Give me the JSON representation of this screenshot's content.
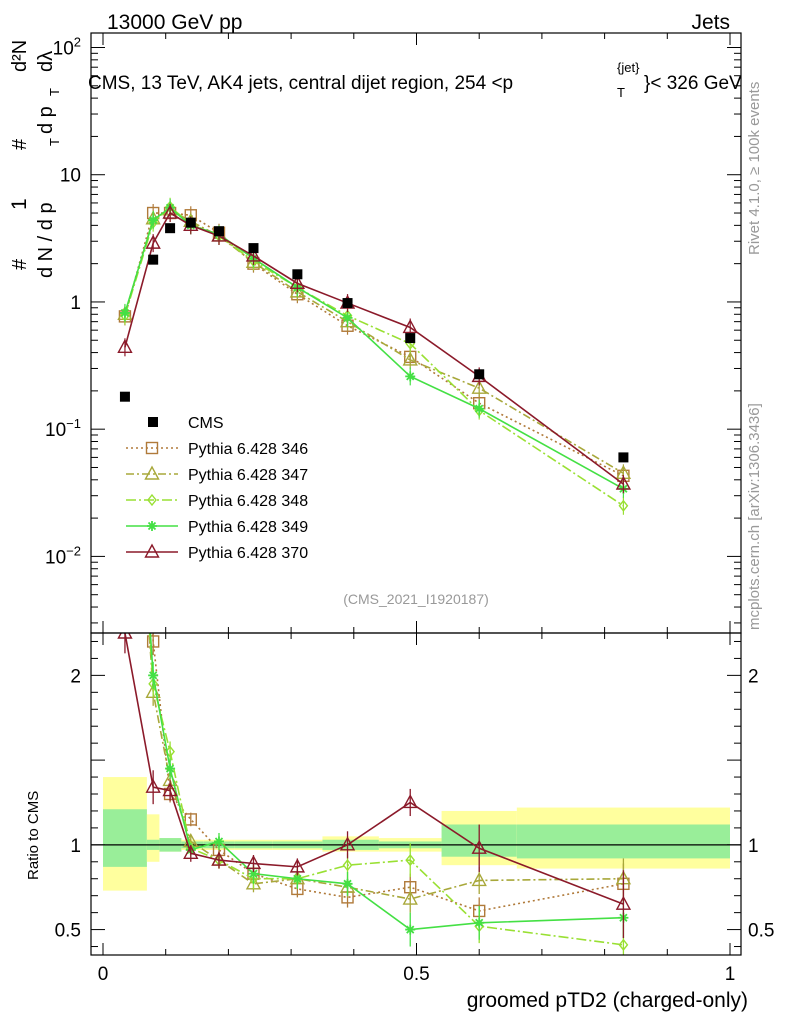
{
  "header": {
    "left_label": "13000 GeV pp",
    "right_label": "Jets",
    "title": "CMS, 13 TeV, AK4 jets, central dijet region, 254 <p",
    "title_sup": "{jet}",
    "title_sub": "T",
    "title_end": "}< 326 GeV",
    "analysis_id": "(CMS_2021_I1920187)"
  },
  "side_labels": {
    "rivet": "Rivet 4.1.0, ≥ 100k events",
    "mcplots": "mcplots.cern.ch [arXiv:1306.3436]"
  },
  "axes": {
    "xlabel": "groomed pTD2 (charged-only)",
    "ratio_ylabel": "Ratio to CMS",
    "ylabel_parts": [
      "#",
      "1",
      "d N / d p",
      "T",
      "#",
      "d p",
      "T",
      "d²N",
      "dλ"
    ],
    "xlim": [
      0,
      1
    ],
    "main_ylim_log": [
      0.0025,
      130
    ],
    "ratio_ylim": [
      0.35,
      2.25
    ],
    "x_ticks": [
      {
        "v": 0,
        "label": "0"
      },
      {
        "v": 0.5,
        "label": "0.5"
      },
      {
        "v": 1,
        "label": "1"
      }
    ],
    "main_y_ticks": [
      {
        "v": 0.01,
        "base": "10",
        "exp": "−2"
      },
      {
        "v": 0.1,
        "base": "10",
        "exp": "−1"
      },
      {
        "v": 1,
        "label": "1"
      },
      {
        "v": 10,
        "label": "10"
      },
      {
        "v": 100,
        "base": "10",
        "exp": "2"
      }
    ],
    "ratio_y_ticks": [
      {
        "v": 0.5,
        "label": "0.5"
      },
      {
        "v": 1,
        "label": "1"
      },
      {
        "v": 2,
        "label": "2"
      }
    ]
  },
  "chart_data": {
    "type": "line",
    "title": "CMS, 13 TeV, AK4 jets, central dijet region, 254 < pT{jet} < 326 GeV",
    "xlabel": "groomed pTD2 (charged-only)",
    "ylabel": "1/(dN/dpT) d²N/(dpT dλ)",
    "x": [
      0.035,
      0.08,
      0.107,
      0.14,
      0.185,
      0.24,
      0.31,
      0.39,
      0.49,
      0.6,
      0.83
    ],
    "bin_edges": [
      0.0,
      0.07,
      0.09,
      0.125,
      0.16,
      0.21,
      0.27,
      0.35,
      0.44,
      0.54,
      0.66,
      1.0
    ],
    "data": {
      "name": "CMS",
      "color": "#000000",
      "values": [
        0.18,
        2.15,
        3.8,
        4.2,
        3.6,
        2.65,
        1.65,
        0.98,
        0.52,
        0.27,
        0.06
      ]
    },
    "ratio_band_stat": [
      [
        0.87,
        1.21
      ],
      [
        0.97,
        1.03
      ],
      [
        0.96,
        1.04
      ],
      [
        0.98,
        1.02
      ],
      [
        0.98,
        1.02
      ],
      [
        0.98,
        1.02
      ],
      [
        0.98,
        1.02
      ],
      [
        0.97,
        1.03
      ],
      [
        0.98,
        1.02
      ],
      [
        0.93,
        1.12
      ],
      [
        0.92,
        1.12
      ]
    ],
    "ratio_band_total": [
      [
        0.73,
        1.4
      ],
      [
        0.9,
        1.18
      ],
      [
        0.96,
        1.04
      ],
      [
        0.97,
        1.03
      ],
      [
        0.97,
        1.03
      ],
      [
        0.97,
        1.03
      ],
      [
        0.97,
        1.03
      ],
      [
        0.96,
        1.05
      ],
      [
        0.96,
        1.04
      ],
      [
        0.88,
        1.2
      ],
      [
        0.86,
        1.22
      ]
    ],
    "series": [
      {
        "name": "Pythia 6.428 346",
        "color": "#b07a3a",
        "dash": "2,3",
        "marker": "square",
        "values": [
          0.77,
          5.0,
          5.0,
          4.8,
          3.5,
          2.0,
          1.15,
          0.65,
          0.37,
          0.16,
          0.043
        ],
        "ratio": [
          4.3,
          2.2,
          1.3,
          1.15,
          0.97,
          0.83,
          0.74,
          0.69,
          0.75,
          0.61,
          0.77
        ],
        "ratio_err": [
          0.3,
          0.08,
          0.05,
          0.04,
          0.05,
          0.05,
          0.05,
          0.06,
          0.08,
          0.08,
          0.12
        ]
      },
      {
        "name": "Pythia 6.428 347",
        "color": "#a8a83a",
        "dash": "8,3,2,3",
        "marker": "triangle",
        "values": [
          0.8,
          4.5,
          5.3,
          4.3,
          3.3,
          2.05,
          1.2,
          0.7,
          0.35,
          0.21,
          0.045
        ],
        "ratio": [
          4.4,
          1.9,
          1.38,
          1.02,
          0.91,
          0.77,
          0.8,
          0.75,
          0.68,
          0.79,
          0.8
        ],
        "ratio_err": [
          0.3,
          0.08,
          0.05,
          0.04,
          0.05,
          0.05,
          0.05,
          0.06,
          0.08,
          0.08,
          0.12
        ]
      },
      {
        "name": "Pythia 6.428 348",
        "color": "#99e033",
        "dash": "10,3,2,3",
        "marker": "diamond",
        "values": [
          0.78,
          4.2,
          5.6,
          4.1,
          3.3,
          2.1,
          1.3,
          0.78,
          0.47,
          0.14,
          0.025
        ],
        "ratio": [
          4.3,
          1.95,
          1.55,
          0.98,
          0.91,
          0.8,
          0.8,
          0.88,
          0.91,
          0.52,
          0.41
        ],
        "ratio_err": [
          0.3,
          0.08,
          0.06,
          0.04,
          0.05,
          0.06,
          0.06,
          0.07,
          0.1,
          0.1,
          0.12
        ]
      },
      {
        "name": "Pythia 6.428 349",
        "color": "#44e044",
        "dash": "",
        "marker": "cross",
        "values": [
          0.82,
          4.4,
          5.5,
          4.0,
          3.4,
          2.2,
          1.3,
          0.75,
          0.26,
          0.145,
          0.034
        ],
        "ratio": [
          4.5,
          2.0,
          1.45,
          0.97,
          1.02,
          0.83,
          0.8,
          0.77,
          0.5,
          0.54,
          0.57
        ],
        "ratio_err": [
          0.3,
          0.08,
          0.06,
          0.04,
          0.05,
          0.06,
          0.06,
          0.07,
          0.1,
          0.1,
          0.12
        ]
      },
      {
        "name": "Pythia 6.428 370",
        "color": "#8b1a2a",
        "dash": "",
        "marker": "triangle",
        "values": [
          0.44,
          2.9,
          5.0,
          4.0,
          3.3,
          2.3,
          1.4,
          0.98,
          0.63,
          0.26,
          0.037
        ],
        "ratio": [
          2.25,
          1.34,
          1.32,
          0.95,
          0.91,
          0.89,
          0.87,
          1.0,
          1.25,
          0.98,
          0.65
        ],
        "ratio_err": [
          0.12,
          0.1,
          0.06,
          0.05,
          0.05,
          0.05,
          0.05,
          0.08,
          0.08,
          0.14,
          0.2
        ]
      }
    ]
  }
}
